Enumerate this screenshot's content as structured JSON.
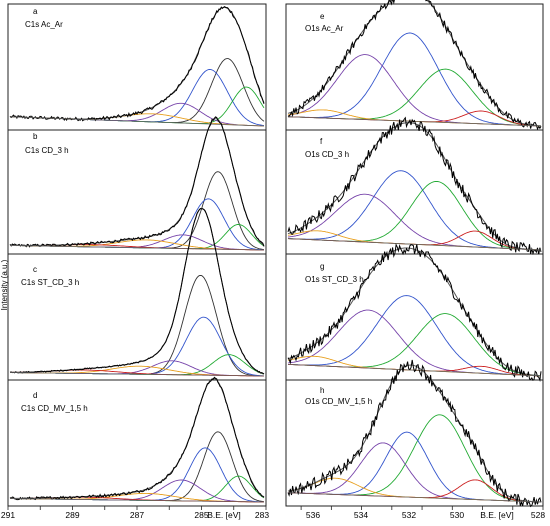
{
  "figure": {
    "left_ylabel": "Intensity (a.u.)",
    "left_xticks": [
      "291",
      "289",
      "287",
      "285",
      "283"
    ],
    "right_xticks": [
      "536",
      "534",
      "532",
      "530",
      "528"
    ],
    "xunit_label": "B.E. [eV]"
  },
  "chart_data": [
    {
      "panel": "a",
      "type": "line",
      "label": "C1s Ac_Ar",
      "xlim": [
        291,
        283
      ],
      "series_colors": [
        "#000000",
        "#3355cc",
        "#333333",
        "#22aa33",
        "#7744aa",
        "#e8a020",
        "#cc2222"
      ],
      "components": [
        {
          "center": 284.15,
          "height": 0.57,
          "width": 0.5,
          "color": "#333333"
        },
        {
          "center": 284.7,
          "height": 0.47,
          "width": 0.55,
          "color": "#3355cc"
        },
        {
          "center": 283.55,
          "height": 0.33,
          "width": 0.45,
          "color": "#22aa33"
        },
        {
          "center": 285.6,
          "height": 0.17,
          "width": 0.6,
          "color": "#7744aa"
        },
        {
          "center": 286.5,
          "height": 0.07,
          "width": 0.9,
          "color": "#e8a020"
        }
      ],
      "baseline_start": 0.08,
      "baseline_end": 0.0,
      "noise": 0.015
    },
    {
      "panel": "b",
      "type": "line",
      "label": "C1s CD_3 h",
      "xlim": [
        291,
        283
      ],
      "series_colors": [
        "#000000",
        "#3355cc",
        "#333333",
        "#22aa33",
        "#7744aa",
        "#e8a020",
        "#cc2222"
      ],
      "components": [
        {
          "center": 284.45,
          "height": 0.68,
          "width": 0.45,
          "color": "#333333"
        },
        {
          "center": 284.75,
          "height": 0.44,
          "width": 0.5,
          "color": "#3355cc"
        },
        {
          "center": 283.8,
          "height": 0.22,
          "width": 0.42,
          "color": "#22aa33"
        },
        {
          "center": 285.55,
          "height": 0.12,
          "width": 0.6,
          "color": "#7744aa"
        },
        {
          "center": 286.7,
          "height": 0.07,
          "width": 0.9,
          "color": "#e8a020"
        },
        {
          "center": 288.4,
          "height": 0.02,
          "width": 1.0,
          "color": "#cc2222"
        }
      ],
      "baseline_start": 0.04,
      "baseline_end": 0.0,
      "noise": 0.012
    },
    {
      "panel": "c",
      "type": "line",
      "label": "C1s ST_CD_3 h",
      "xlim": [
        291,
        283
      ],
      "series_colors": [
        "#000000",
        "#3355cc",
        "#333333",
        "#22aa33",
        "#7744aa",
        "#e8a020",
        "#cc2222"
      ],
      "components": [
        {
          "center": 285.0,
          "height": 0.86,
          "width": 0.5,
          "color": "#333333"
        },
        {
          "center": 284.9,
          "height": 0.5,
          "width": 0.55,
          "color": "#3355cc"
        },
        {
          "center": 284.1,
          "height": 0.18,
          "width": 0.5,
          "color": "#22aa33"
        },
        {
          "center": 285.9,
          "height": 0.12,
          "width": 0.6,
          "color": "#7744aa"
        },
        {
          "center": 286.9,
          "height": 0.07,
          "width": 0.9,
          "color": "#e8a020"
        },
        {
          "center": 288.6,
          "height": 0.03,
          "width": 1.0,
          "color": "#cc2222"
        }
      ],
      "baseline_start": 0.03,
      "baseline_end": 0.0,
      "noise": 0.006
    },
    {
      "panel": "d",
      "type": "line",
      "label": "C1s CD_MV_1,5 h",
      "xlim": [
        291,
        283
      ],
      "series_colors": [
        "#000000",
        "#3355cc",
        "#333333",
        "#22aa33",
        "#7744aa",
        "#e8a020",
        "#cc2222"
      ],
      "components": [
        {
          "center": 284.45,
          "height": 0.6,
          "width": 0.45,
          "color": "#333333"
        },
        {
          "center": 284.85,
          "height": 0.46,
          "width": 0.5,
          "color": "#3355cc"
        },
        {
          "center": 283.8,
          "height": 0.22,
          "width": 0.42,
          "color": "#22aa33"
        },
        {
          "center": 285.6,
          "height": 0.18,
          "width": 0.6,
          "color": "#7744aa"
        },
        {
          "center": 286.7,
          "height": 0.06,
          "width": 0.9,
          "color": "#e8a020"
        },
        {
          "center": 288.6,
          "height": 0.02,
          "width": 1.0,
          "color": "#cc2222"
        }
      ],
      "baseline_start": 0.03,
      "baseline_end": 0.0,
      "noise": 0.012
    },
    {
      "panel": "e",
      "type": "line",
      "label": "O1s Ac_Ar",
      "xlim": [
        536.5,
        528
      ],
      "series_colors": [
        "#000000",
        "#3355cc",
        "#7744aa",
        "#22aa33",
        "#cc2222",
        "#e8a020"
      ],
      "components": [
        {
          "center": 532.4,
          "height": 0.76,
          "width": 0.95,
          "color": "#3355cc"
        },
        {
          "center": 533.9,
          "height": 0.56,
          "width": 0.95,
          "color": "#7744aa"
        },
        {
          "center": 531.2,
          "height": 0.46,
          "width": 0.9,
          "color": "#22aa33"
        },
        {
          "center": 530.0,
          "height": 0.11,
          "width": 0.6,
          "color": "#cc2222"
        },
        {
          "center": 535.3,
          "height": 0.07,
          "width": 0.7,
          "color": "#e8a020"
        }
      ],
      "baseline_start": 0.08,
      "baseline_end": 0.0,
      "noise": 0.035
    },
    {
      "panel": "f",
      "type": "line",
      "label": "O1s CD_3 h",
      "xlim": [
        536.5,
        528
      ],
      "series_colors": [
        "#000000",
        "#3355cc",
        "#7744aa",
        "#22aa33",
        "#cc2222",
        "#e8a020"
      ],
      "components": [
        {
          "center": 532.7,
          "height": 0.64,
          "width": 0.95,
          "color": "#3355cc"
        },
        {
          "center": 533.9,
          "height": 0.42,
          "width": 1.0,
          "color": "#7744aa"
        },
        {
          "center": 531.5,
          "height": 0.56,
          "width": 0.85,
          "color": "#22aa33"
        },
        {
          "center": 530.2,
          "height": 0.14,
          "width": 0.55,
          "color": "#cc2222"
        },
        {
          "center": 535.5,
          "height": 0.08,
          "width": 0.7,
          "color": "#e8a020"
        }
      ],
      "baseline_start": 0.1,
      "baseline_end": 0.0,
      "noise": 0.05
    },
    {
      "panel": "g",
      "type": "line",
      "label": "O1s ST_CD_3 h",
      "xlim": [
        536.5,
        528
      ],
      "series_colors": [
        "#000000",
        "#3355cc",
        "#7744aa",
        "#22aa33",
        "#cc2222",
        "#e8a020"
      ],
      "components": [
        {
          "center": 532.5,
          "height": 0.64,
          "width": 1.0,
          "color": "#3355cc"
        },
        {
          "center": 533.8,
          "height": 0.5,
          "width": 1.0,
          "color": "#7744aa"
        },
        {
          "center": 531.2,
          "height": 0.5,
          "width": 0.95,
          "color": "#22aa33"
        },
        {
          "center": 530.0,
          "height": 0.06,
          "width": 0.55,
          "color": "#cc2222"
        },
        {
          "center": 535.6,
          "height": 0.08,
          "width": 0.7,
          "color": "#e8a020"
        }
      ],
      "baseline_start": 0.1,
      "baseline_end": 0.0,
      "noise": 0.05
    },
    {
      "panel": "h",
      "type": "line",
      "label": "O1s CD_MV_1,5 h",
      "xlim": [
        536.5,
        528
      ],
      "series_colors": [
        "#000000",
        "#3355cc",
        "#7744aa",
        "#22aa33",
        "#cc2222",
        "#e8a020"
      ],
      "components": [
        {
          "center": 531.4,
          "height": 0.72,
          "width": 0.85,
          "color": "#22aa33"
        },
        {
          "center": 532.5,
          "height": 0.56,
          "width": 0.7,
          "color": "#3355cc"
        },
        {
          "center": 533.3,
          "height": 0.46,
          "width": 0.75,
          "color": "#7744aa"
        },
        {
          "center": 530.2,
          "height": 0.17,
          "width": 0.55,
          "color": "#cc2222"
        },
        {
          "center": 534.9,
          "height": 0.14,
          "width": 0.75,
          "color": "#e8a020"
        }
      ],
      "baseline_start": 0.08,
      "baseline_end": 0.0,
      "noise": 0.05
    }
  ]
}
